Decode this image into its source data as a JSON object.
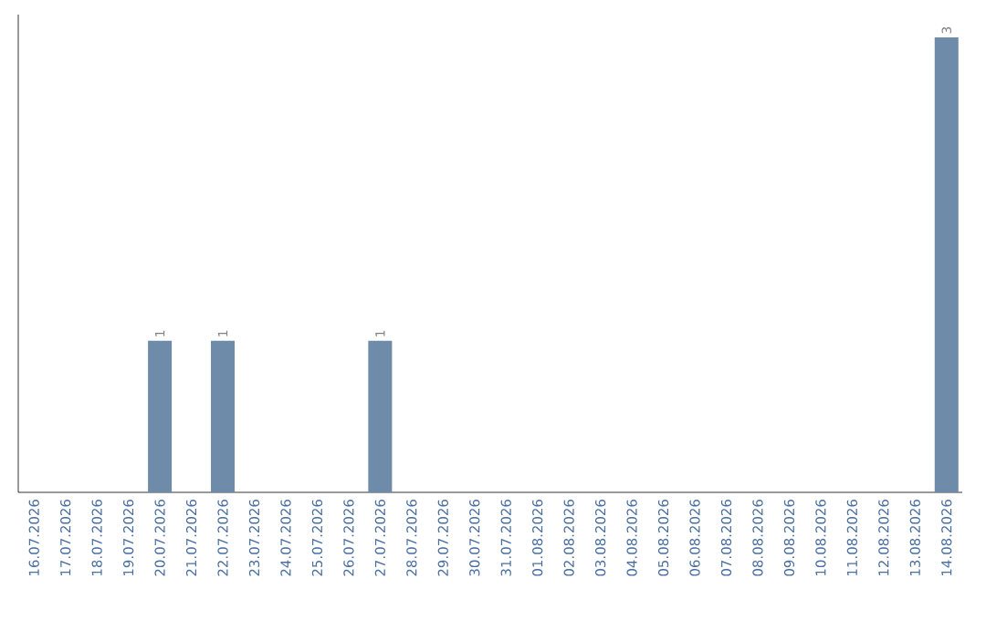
{
  "chart_data": {
    "type": "bar",
    "categories": [
      "16.07.2026",
      "17.07.2026",
      "18.07.2026",
      "19.07.2026",
      "20.07.2026",
      "21.07.2026",
      "22.07.2026",
      "23.07.2026",
      "24.07.2026",
      "25.07.2026",
      "26.07.2026",
      "27.07.2026",
      "28.07.2026",
      "29.07.2026",
      "30.07.2026",
      "31.07.2026",
      "01.08.2026",
      "02.08.2026",
      "03.08.2026",
      "04.08.2026",
      "05.08.2026",
      "06.08.2026",
      "07.08.2026",
      "08.08.2026",
      "09.08.2026",
      "10.08.2026",
      "11.08.2026",
      "12.08.2026",
      "13.08.2026",
      "14.08.2026"
    ],
    "values": [
      0,
      0,
      0,
      0,
      1,
      0,
      1,
      0,
      0,
      0,
      0,
      1,
      0,
      0,
      0,
      0,
      0,
      0,
      0,
      0,
      0,
      0,
      0,
      0,
      0,
      0,
      0,
      0,
      0,
      3
    ],
    "value_labels": [
      null,
      null,
      null,
      null,
      "1",
      null,
      "1",
      null,
      null,
      null,
      null,
      "1",
      null,
      null,
      null,
      null,
      null,
      null,
      null,
      null,
      null,
      null,
      null,
      null,
      null,
      null,
      null,
      null,
      null,
      "3"
    ],
    "color": "#6e8caa"
  }
}
